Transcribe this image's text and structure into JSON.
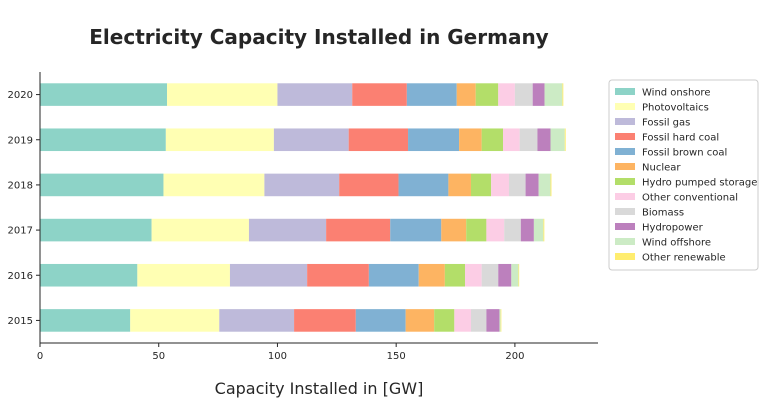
{
  "chart_data": {
    "type": "bar",
    "orientation": "horizontal",
    "stacked": true,
    "title": "Electricity Capacity Installed in Germany",
    "xlabel": "Capacity Installed in [GW]",
    "ylabel": "",
    "xlim": [
      0,
      235
    ],
    "xticks": [
      0,
      50,
      100,
      150,
      200
    ],
    "grid": false,
    "legend_position": "right",
    "categories": [
      "2015",
      "2016",
      "2017",
      "2018",
      "2019",
      "2020"
    ],
    "series": [
      {
        "name": "Wind onshore",
        "color": "#8dd3c7",
        "values": [
          38,
          41,
          47,
          52,
          53,
          53.5
        ]
      },
      {
        "name": "Photovoltaics",
        "color": "#ffffb3",
        "values": [
          37.5,
          39,
          41,
          42.5,
          45.5,
          46.5
        ]
      },
      {
        "name": "Fossil gas",
        "color": "#bebada",
        "values": [
          31.5,
          32.5,
          32.5,
          31.5,
          31.5,
          31.5
        ]
      },
      {
        "name": "Fossil hard coal",
        "color": "#fb8072",
        "values": [
          26,
          26,
          27,
          25,
          25,
          23
        ]
      },
      {
        "name": "Fossil brown coal",
        "color": "#80b1d3",
        "values": [
          21,
          21,
          21.5,
          21,
          21.5,
          21
        ]
      },
      {
        "name": "Nuclear",
        "color": "#fdb462",
        "values": [
          12,
          11,
          10.5,
          9.5,
          9.5,
          8
        ]
      },
      {
        "name": "Hydro pumped storage",
        "color": "#b3de69",
        "values": [
          8.5,
          8.5,
          8.5,
          8.5,
          9,
          9.5
        ]
      },
      {
        "name": "Other conventional",
        "color": "#fccde5",
        "values": [
          7,
          7,
          7.5,
          7.5,
          7,
          7
        ]
      },
      {
        "name": "Biomass",
        "color": "#d9d9d9",
        "values": [
          6.5,
          7,
          7,
          7,
          7.5,
          7.5
        ]
      },
      {
        "name": "Hydropower",
        "color": "#bc80bd",
        "values": [
          5.5,
          5.5,
          5.5,
          5.5,
          5.5,
          5
        ]
      },
      {
        "name": "Wind offshore",
        "color": "#ccebc5",
        "values": [
          0.5,
          3,
          4,
          5,
          6,
          7.5
        ]
      },
      {
        "name": "Other renewable",
        "color": "#ffed6f",
        "values": [
          0.3,
          0.3,
          0.4,
          0.4,
          0.4,
          0.4
        ]
      }
    ]
  }
}
